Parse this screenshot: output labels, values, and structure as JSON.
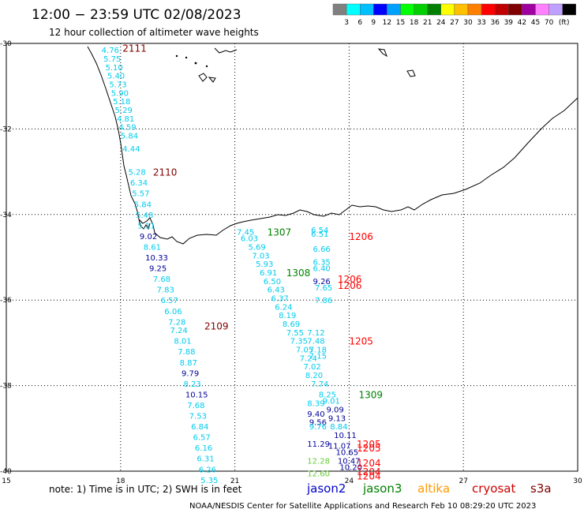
{
  "header": {
    "title": "12:00 − 23:59 UTC 02/08/2023",
    "subtitle": "12 hour collection of altimeter wave heights"
  },
  "colorbar": {
    "unit": "(ft)",
    "labels": [
      "3",
      "6",
      "9",
      "12",
      "15",
      "18",
      "21",
      "24",
      "27",
      "30",
      "33",
      "36",
      "39",
      "42",
      "45",
      "70"
    ],
    "colors": [
      "#808080",
      "#00ffff",
      "#00c0ff",
      "#0000ff",
      "#00a0ff",
      "#00ff00",
      "#00d000",
      "#008000",
      "#ffff00",
      "#ffc000",
      "#ff8000",
      "#ff0000",
      "#c00000",
      "#800000",
      "#a000a0",
      "#ff80ff",
      "#c0a0ff",
      "#000000"
    ]
  },
  "map": {
    "lon_min": 15,
    "lon_max": 30,
    "lat_min": -40,
    "lat_max": -30,
    "x_ticks": [
      "15",
      "18",
      "21",
      "24",
      "27",
      "30"
    ],
    "y_ticks": [
      "-30",
      "-32",
      "-34",
      "-36",
      "-38",
      "-40"
    ],
    "track_colors": {
      "s3a": "#00ccee",
      "cryosat": "#000099",
      "jason3": "#66cc33"
    },
    "pass_times": [
      {
        "text": "2111",
        "lon": 18.05,
        "lat": -30.1,
        "color": "#800000"
      },
      {
        "text": "2110",
        "lon": 18.85,
        "lat": -33.0,
        "color": "#800000"
      },
      {
        "text": "2109",
        "lon": 20.2,
        "lat": -36.6,
        "color": "#800000"
      },
      {
        "text": "1307",
        "lon": 21.85,
        "lat": -34.4,
        "color": "#008000"
      },
      {
        "text": "1206",
        "lon": 24.0,
        "lat": -34.5,
        "color": "#ff0000"
      },
      {
        "text": "1308",
        "lon": 22.35,
        "lat": -35.35,
        "color": "#008000"
      },
      {
        "text": "1206",
        "lon": 23.7,
        "lat": -35.5,
        "color": "#ff0000"
      },
      {
        "text": "1206",
        "lon": 23.7,
        "lat": -35.65,
        "color": "#ff0000"
      },
      {
        "text": "1205",
        "lon": 24.0,
        "lat": -36.95,
        "color": "#ff0000"
      },
      {
        "text": "1309",
        "lon": 24.25,
        "lat": -38.2,
        "color": "#008000"
      },
      {
        "text": "1205",
        "lon": 24.2,
        "lat": -39.35,
        "color": "#ff0000"
      },
      {
        "text": "1205",
        "lon": 24.2,
        "lat": -39.45,
        "color": "#ff0000"
      },
      {
        "text": "1204",
        "lon": 24.2,
        "lat": -39.8,
        "color": "#ff0000"
      },
      {
        "text": "1204",
        "lon": 24.2,
        "lat": -40.0,
        "color": "#ff0000"
      },
      {
        "text": "1204",
        "lon": 24.2,
        "lat": -40.1,
        "color": "#ff0000"
      }
    ],
    "wave_heights": [
      {
        "v": "4.76",
        "lon": 17.5,
        "lat": -30.15,
        "sat": "s3a"
      },
      {
        "v": "5.75",
        "lon": 17.55,
        "lat": -30.35,
        "sat": "s3a"
      },
      {
        "v": "5.10",
        "lon": 17.6,
        "lat": -30.55,
        "sat": "s3a"
      },
      {
        "v": "5.40",
        "lon": 17.65,
        "lat": -30.75,
        "sat": "s3a"
      },
      {
        "v": "5.73",
        "lon": 17.7,
        "lat": -30.95,
        "sat": "s3a"
      },
      {
        "v": "5.90",
        "lon": 17.75,
        "lat": -31.15,
        "sat": "s3a"
      },
      {
        "v": "5.18",
        "lon": 17.8,
        "lat": -31.35,
        "sat": "s3a"
      },
      {
        "v": "5.29",
        "lon": 17.85,
        "lat": -31.55,
        "sat": "s3a"
      },
      {
        "v": "4.81",
        "lon": 17.9,
        "lat": -31.75,
        "sat": "s3a"
      },
      {
        "v": "4.59",
        "lon": 17.95,
        "lat": -31.95,
        "sat": "s3a"
      },
      {
        "v": "5.84",
        "lon": 18.0,
        "lat": -32.15,
        "sat": "s3a"
      },
      {
        "v": "4.44",
        "lon": 18.05,
        "lat": -32.45,
        "sat": "s3a"
      },
      {
        "v": "5.28",
        "lon": 18.2,
        "lat": -33.0,
        "sat": "s3a"
      },
      {
        "v": "6.34",
        "lon": 18.25,
        "lat": -33.25,
        "sat": "s3a"
      },
      {
        "v": "5.57",
        "lon": 18.3,
        "lat": -33.5,
        "sat": "s3a"
      },
      {
        "v": "5.84",
        "lon": 18.35,
        "lat": -33.75,
        "sat": "s3a"
      },
      {
        "v": "5.48",
        "lon": 18.4,
        "lat": -34.0,
        "sat": "s3a"
      },
      {
        "v": "5.11",
        "lon": 18.45,
        "lat": -34.25,
        "sat": "s3a"
      },
      {
        "v": "9.02",
        "lon": 18.5,
        "lat": -34.5,
        "sat": "cryosat"
      },
      {
        "v": "8.61",
        "lon": 18.6,
        "lat": -34.75,
        "sat": "s3a"
      },
      {
        "v": "10.33",
        "lon": 18.65,
        "lat": -35.0,
        "sat": "cryosat"
      },
      {
        "v": "9.25",
        "lon": 18.75,
        "lat": -35.25,
        "sat": "cryosat"
      },
      {
        "v": "7.68",
        "lon": 18.85,
        "lat": -35.5,
        "sat": "s3a"
      },
      {
        "v": "7.83",
        "lon": 18.95,
        "lat": -35.75,
        "sat": "s3a"
      },
      {
        "v": "6.57",
        "lon": 19.05,
        "lat": -36.0,
        "sat": "s3a"
      },
      {
        "v": "6.06",
        "lon": 19.15,
        "lat": -36.25,
        "sat": "s3a"
      },
      {
        "v": "7.28",
        "lon": 19.25,
        "lat": -36.5,
        "sat": "s3a"
      },
      {
        "v": "7.24",
        "lon": 19.3,
        "lat": -36.7,
        "sat": "s3a"
      },
      {
        "v": "8.01",
        "lon": 19.4,
        "lat": -36.95,
        "sat": "s3a"
      },
      {
        "v": "7.88",
        "lon": 19.5,
        "lat": -37.2,
        "sat": "s3a"
      },
      {
        "v": "8.87",
        "lon": 19.55,
        "lat": -37.45,
        "sat": "s3a"
      },
      {
        "v": "9.79",
        "lon": 19.6,
        "lat": -37.7,
        "sat": "cryosat"
      },
      {
        "v": "8.23",
        "lon": 19.65,
        "lat": -37.95,
        "sat": "s3a"
      },
      {
        "v": "10.15",
        "lon": 19.7,
        "lat": -38.2,
        "sat": "cryosat"
      },
      {
        "v": "7.68",
        "lon": 19.75,
        "lat": -38.45,
        "sat": "s3a"
      },
      {
        "v": "7.53",
        "lon": 19.8,
        "lat": -38.7,
        "sat": "s3a"
      },
      {
        "v": "6.84",
        "lon": 19.85,
        "lat": -38.95,
        "sat": "s3a"
      },
      {
        "v": "6.57",
        "lon": 19.9,
        "lat": -39.2,
        "sat": "s3a"
      },
      {
        "v": "6.16",
        "lon": 19.95,
        "lat": -39.45,
        "sat": "s3a"
      },
      {
        "v": "6.31",
        "lon": 20.0,
        "lat": -39.7,
        "sat": "s3a"
      },
      {
        "v": "6.26",
        "lon": 20.05,
        "lat": -39.95,
        "sat": "s3a"
      },
      {
        "v": "5.35",
        "lon": 20.1,
        "lat": -40.2,
        "sat": "s3a"
      },
      {
        "v": "7.45",
        "lon": 21.05,
        "lat": -34.4,
        "sat": "s3a"
      },
      {
        "v": "6.03",
        "lon": 21.15,
        "lat": -34.55,
        "sat": "s3a"
      },
      {
        "v": "5.69",
        "lon": 21.35,
        "lat": -34.75,
        "sat": "s3a"
      },
      {
        "v": "7.03",
        "lon": 21.45,
        "lat": -34.95,
        "sat": "s3a"
      },
      {
        "v": "5.93",
        "lon": 21.55,
        "lat": -35.15,
        "sat": "s3a"
      },
      {
        "v": "6.91",
        "lon": 21.65,
        "lat": -35.35,
        "sat": "s3a"
      },
      {
        "v": "6.50",
        "lon": 21.75,
        "lat": -35.55,
        "sat": "s3a"
      },
      {
        "v": "6.43",
        "lon": 21.85,
        "lat": -35.75,
        "sat": "s3a"
      },
      {
        "v": "6.37",
        "lon": 21.95,
        "lat": -35.95,
        "sat": "s3a"
      },
      {
        "v": "6.24",
        "lon": 22.05,
        "lat": -36.15,
        "sat": "s3a"
      },
      {
        "v": "8.19",
        "lon": 22.15,
        "lat": -36.35,
        "sat": "s3a"
      },
      {
        "v": "8.69",
        "lon": 22.25,
        "lat": -36.55,
        "sat": "s3a"
      },
      {
        "v": "7.55",
        "lon": 22.35,
        "lat": -36.75,
        "sat": "s3a"
      },
      {
        "v": "7.35",
        "lon": 22.45,
        "lat": -36.95,
        "sat": "s3a"
      },
      {
        "v": "7.05",
        "lon": 22.6,
        "lat": -37.15,
        "sat": "s3a"
      },
      {
        "v": "7.24",
        "lon": 22.7,
        "lat": -37.35,
        "sat": "s3a"
      },
      {
        "v": "7.02",
        "lon": 22.8,
        "lat": -37.55,
        "sat": "s3a"
      },
      {
        "v": "8.20",
        "lon": 22.85,
        "lat": -37.75,
        "sat": "s3a"
      },
      {
        "v": "7.74",
        "lon": 23.0,
        "lat": -37.95,
        "sat": "s3a"
      },
      {
        "v": "8.25",
        "lon": 23.2,
        "lat": -38.2,
        "sat": "s3a"
      },
      {
        "v": "8.39",
        "lon": 22.9,
        "lat": -38.4,
        "sat": "s3a"
      },
      {
        "v": "9.40",
        "lon": 22.9,
        "lat": -38.65,
        "sat": "cryosat"
      },
      {
        "v": "9.56",
        "lon": 22.95,
        "lat": -38.85,
        "sat": "cryosat"
      },
      {
        "v": "9.76",
        "lon": 22.95,
        "lat": -38.95,
        "sat": "s3a"
      },
      {
        "v": "9.01",
        "lon": 23.3,
        "lat": -38.35,
        "sat": "s3a"
      },
      {
        "v": "9.09",
        "lon": 23.4,
        "lat": -38.55,
        "sat": "cryosat"
      },
      {
        "v": "9.13",
        "lon": 23.45,
        "lat": -38.75,
        "sat": "cryosat"
      },
      {
        "v": "8.84",
        "lon": 23.5,
        "lat": -38.95,
        "sat": "s3a"
      },
      {
        "v": "10.11",
        "lon": 23.6,
        "lat": -39.15,
        "sat": "cryosat"
      },
      {
        "v": "11.29",
        "lon": 22.9,
        "lat": -39.35,
        "sat": "cryosat"
      },
      {
        "v": "11.07",
        "lon": 23.45,
        "lat": -39.4,
        "sat": "cryosat"
      },
      {
        "v": "10.65",
        "lon": 23.65,
        "lat": -39.55,
        "sat": "cryosat"
      },
      {
        "v": "12.28",
        "lon": 22.9,
        "lat": -39.75,
        "sat": "jason3"
      },
      {
        "v": "10.47",
        "lon": 23.7,
        "lat": -39.75,
        "sat": "cryosat"
      },
      {
        "v": "10.20",
        "lon": 23.75,
        "lat": -39.9,
        "sat": "cryosat"
      },
      {
        "v": "12.60",
        "lon": 22.9,
        "lat": -40.05,
        "sat": "jason3"
      },
      {
        "v": "6.51",
        "lon": 23.0,
        "lat": -34.45,
        "sat": "s3a"
      },
      {
        "v": "6.54",
        "lon": 23.0,
        "lat": -34.35,
        "sat": "s3a"
      },
      {
        "v": "6.66",
        "lon": 23.05,
        "lat": -34.8,
        "sat": "s3a"
      },
      {
        "v": "6.35",
        "lon": 23.05,
        "lat": -35.1,
        "sat": "s3a"
      },
      {
        "v": "6.40",
        "lon": 23.05,
        "lat": -35.25,
        "sat": "s3a"
      },
      {
        "v": "9.26",
        "lon": 23.05,
        "lat": -35.55,
        "sat": "cryosat"
      },
      {
        "v": "7.65",
        "lon": 23.1,
        "lat": -35.7,
        "sat": "s3a"
      },
      {
        "v": "7.86",
        "lon": 23.1,
        "lat": -36.0,
        "sat": "s3a"
      },
      {
        "v": "7.12",
        "lon": 22.9,
        "lat": -36.75,
        "sat": "s3a"
      },
      {
        "v": "7.48",
        "lon": 22.9,
        "lat": -36.95,
        "sat": "s3a"
      },
      {
        "v": "7.18",
        "lon": 22.95,
        "lat": -37.15,
        "sat": "s3a"
      },
      {
        "v": "7.15",
        "lon": 22.95,
        "lat": -37.3,
        "sat": "s3a"
      }
    ]
  },
  "footer": {
    "note": "note: 1) Time is in UTC; 2) SWH is in feet",
    "satellites": [
      {
        "name": "jason2",
        "color": "#0000cc"
      },
      {
        "name": "jason3",
        "color": "#008000"
      },
      {
        "name": "altika",
        "color": "#ff9900"
      },
      {
        "name": "cryosat",
        "color": "#cc0000"
      },
      {
        "name": "s3a",
        "color": "#800000"
      }
    ],
    "credit": "NOAA/NESDIS Center for Satellite Applications and Research    Feb 10 08:29:20 UTC 2023"
  }
}
